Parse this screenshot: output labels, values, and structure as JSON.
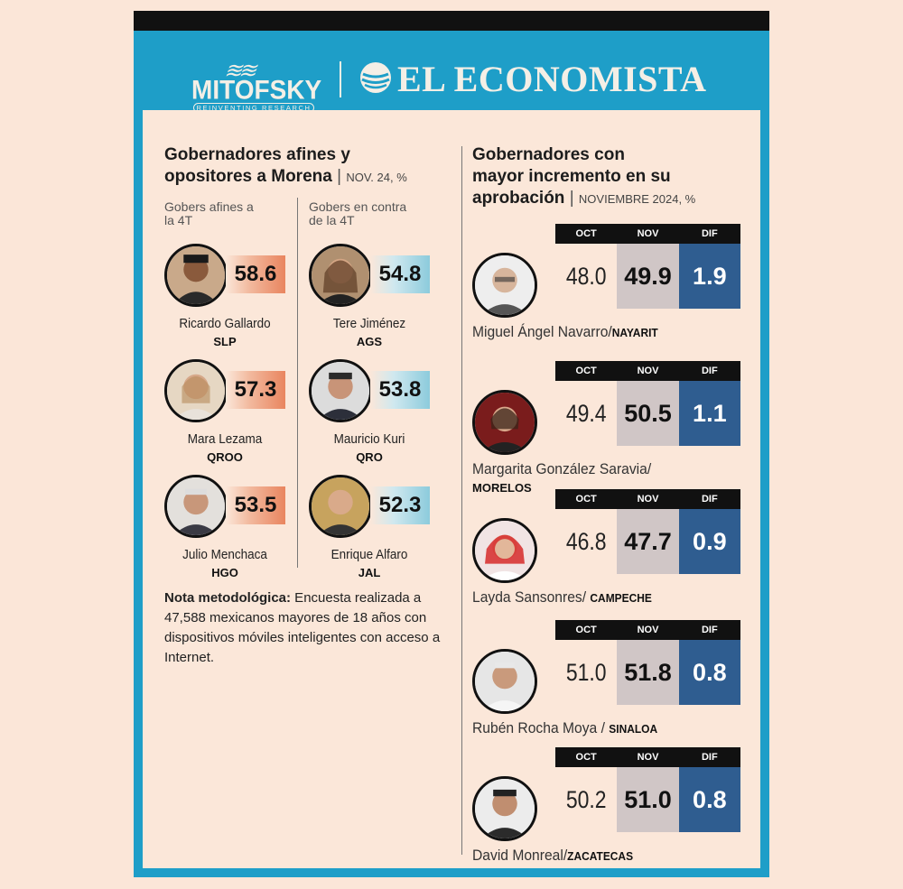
{
  "header": {
    "mitofsky": "MITOFSKY",
    "mitofsky_tag": "REINVENTING RESEARCH",
    "economista": "EL ECONOMISTA"
  },
  "left": {
    "title_line1": "Gobernadores afines y",
    "title_line2": "opositores a Morena",
    "subtitle": "NOV. 24, %",
    "col_afin": "Gobers afines a la 4T",
    "col_contra": "Gobers en contra de la 4T",
    "afines": [
      {
        "name": "Ricardo Gallardo",
        "state": "SLP",
        "score": "58.6"
      },
      {
        "name": "Mara Lezama",
        "state": "QROO",
        "score": "57.3"
      },
      {
        "name": "Julio Menchaca",
        "state": "HGO",
        "score": "53.5"
      }
    ],
    "contra": [
      {
        "name": "Tere Jiménez",
        "state": "AGS",
        "score": "54.8"
      },
      {
        "name": "Mauricio Kuri",
        "state": "QRO",
        "score": "53.8"
      },
      {
        "name": "Enrique Alfaro",
        "state": "JAL",
        "score": "52.3"
      }
    ],
    "nota_label": "Nota metodológica:",
    "nota_text": " Encuesta realizada a 47,588 mexicanos mayores de 18 años con dispositivos móviles inteligentes con acceso a Internet."
  },
  "right": {
    "title_line1": "Gobernadores con",
    "title_line2": "mayor incremento en su",
    "title_line3": "aprobación",
    "subtitle": "NOVIEMBRE 2024, %",
    "col_oct": "OCT",
    "col_nov": "NOV",
    "col_dif": "DIF",
    "rows": [
      {
        "name": "Miguel Ángel Navarro/",
        "state": "NAYARIT",
        "oct": "48.0",
        "nov": "49.9",
        "dif": "1.9"
      },
      {
        "name": "Margarita González Saravia/",
        "state": "MORELOS",
        "oct": "49.4",
        "nov": "50.5",
        "dif": "1.1"
      },
      {
        "name": "Layda Sansonres/ ",
        "state": "CAMPECHE",
        "oct": "46.8",
        "nov": "47.7",
        "dif": "0.9"
      },
      {
        "name": "Rubén Rocha Moya / ",
        "state": "SINALOA",
        "oct": "51.0",
        "nov": "51.8",
        "dif": "0.8"
      },
      {
        "name": "David Monreal/",
        "state": "ZACATECAS",
        "oct": "50.2",
        "nov": "51.0",
        "dif": "0.8"
      }
    ]
  },
  "colors": {
    "frame": "#1e9ec8",
    "background": "#fbe7d9",
    "afin_bar": "#e9855f",
    "contra_bar": "#8ccbdc",
    "dif_cell": "#2f5d90",
    "nov_cell": "#d0c6c6"
  }
}
